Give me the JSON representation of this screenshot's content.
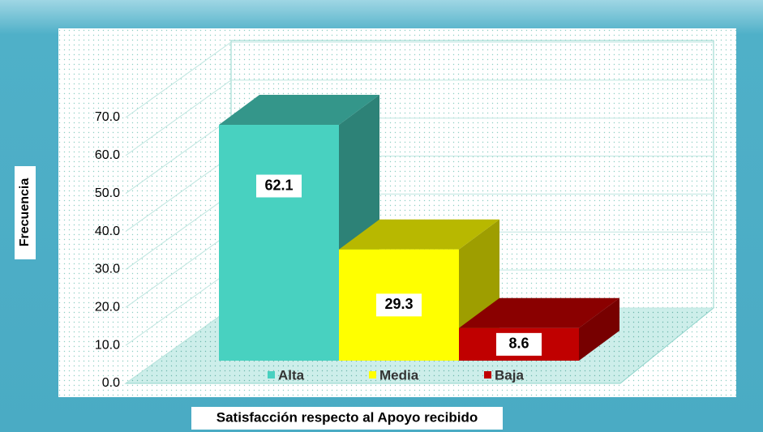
{
  "chart_data": {
    "type": "bar3d",
    "x_label": "Satisfacción respecto al Apoyo recibido",
    "y_label": "Frecuencia",
    "categories": [
      "Alta",
      "Media",
      "Baja"
    ],
    "values": [
      62.1,
      29.3,
      8.6
    ],
    "colors": [
      "#48d1c0",
      "#ffff00",
      "#c00000"
    ],
    "ylim": [
      0,
      70
    ],
    "yticks": [
      {
        "value": 0,
        "label": "0.0"
      },
      {
        "value": 10,
        "label": "10.0"
      },
      {
        "value": 20,
        "label": "20.0"
      },
      {
        "value": 30,
        "label": "30.0"
      },
      {
        "value": 40,
        "label": "40.0"
      },
      {
        "value": 50,
        "label": "50.0"
      },
      {
        "value": 60,
        "label": "60.0"
      },
      {
        "value": 70,
        "label": "70.0"
      }
    ],
    "grid": true,
    "legend": "bottom"
  }
}
